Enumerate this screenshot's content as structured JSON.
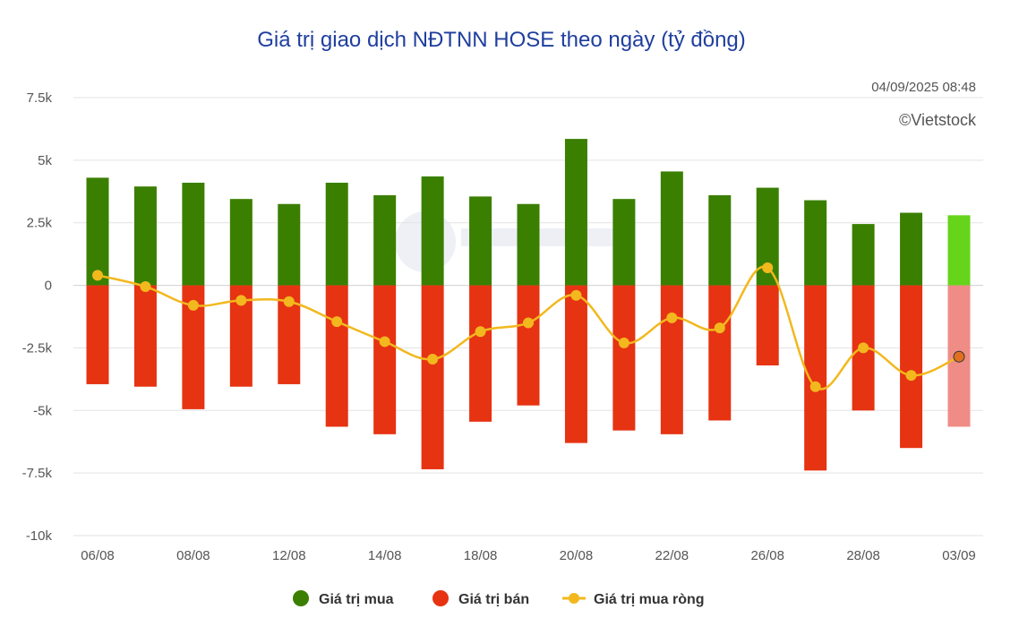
{
  "chart_data": {
    "type": "bar",
    "title": "Giá trị giao dịch NĐTNN HOSE theo ngày (tỷ đồng)",
    "timestamp": "04/09/2025 08:48",
    "copyright": "©Vietstock",
    "xlabel": "",
    "ylabel": "",
    "ylim": [
      -10000,
      7500
    ],
    "yticks": [
      7500,
      5000,
      2500,
      0,
      -2500,
      -5000,
      -7500,
      -10000
    ],
    "ytick_labels": [
      "7.5k",
      "5k",
      "2.5k",
      "0",
      "-2.5k",
      "-5k",
      "-7.5k",
      "-10k"
    ],
    "categories": [
      "06/08",
      "07/08",
      "08/08",
      "11/08",
      "12/08",
      "13/08",
      "14/08",
      "15/08",
      "18/08",
      "19/08",
      "20/08",
      "21/08",
      "22/08",
      "25/08",
      "26/08",
      "27/08",
      "28/08",
      "29/08",
      "03/09"
    ],
    "xtick_labels": [
      "06/08",
      "",
      "08/08",
      "",
      "12/08",
      "",
      "14/08",
      "",
      "18/08",
      "",
      "20/08",
      "",
      "22/08",
      "",
      "26/08",
      "",
      "28/08",
      "",
      "03/09"
    ],
    "series": [
      {
        "name": "Giá trị mua",
        "kind": "bar",
        "color": "#3a7f00",
        "highlight_color": "#66d41a",
        "values": [
          4300,
          3950,
          4100,
          3450,
          3250,
          4100,
          3600,
          4350,
          3550,
          3250,
          5850,
          3450,
          4550,
          3600,
          3900,
          3400,
          2450,
          2900,
          2800
        ]
      },
      {
        "name": "Giá trị bán",
        "kind": "bar",
        "color": "#e63312",
        "highlight_color": "#ef8c86",
        "values": [
          -3950,
          -4050,
          -4950,
          -4050,
          -3950,
          -5650,
          -5950,
          -7350,
          -5450,
          -4800,
          -6300,
          -5800,
          -5950,
          -5400,
          -3200,
          -7400,
          -5000,
          -6500,
          -5650
        ]
      },
      {
        "name": "Giá trị mua ròng",
        "kind": "line",
        "color": "#f2b81e",
        "values": [
          400,
          -50,
          -800,
          -600,
          -650,
          -1450,
          -2250,
          -2950,
          -1850,
          -1500,
          -400,
          -2300,
          -1300,
          -1700,
          700,
          -4050,
          -2500,
          -3600,
          -2850
        ]
      }
    ],
    "legend": [
      "Giá trị mua",
      "Giá trị bán",
      "Giá trị mua ròng"
    ],
    "legend_position": "bottom-center",
    "grid": true
  }
}
